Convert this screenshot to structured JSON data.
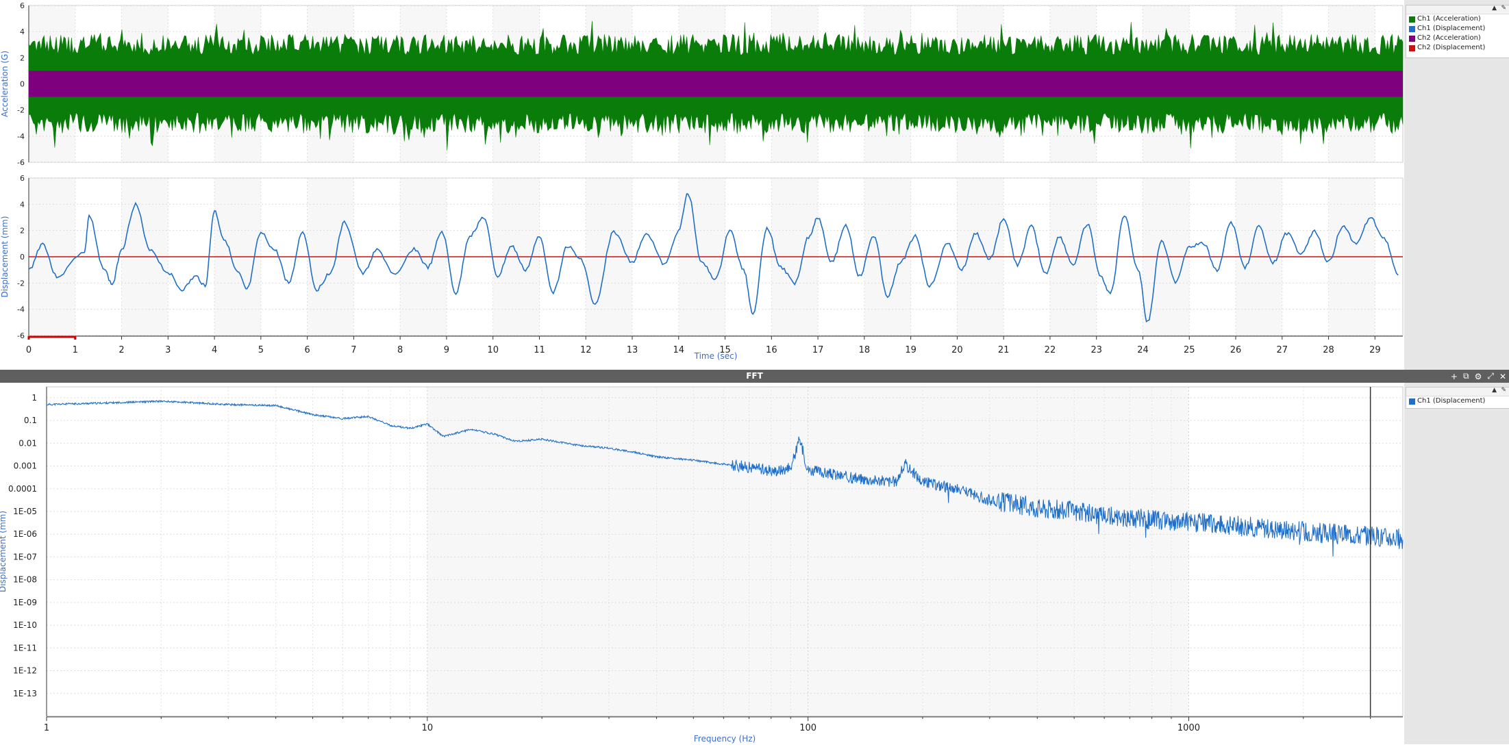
{
  "charts_top": {
    "acc_ylabel": "Acceleration (G)",
    "disp_ylabel": "Displacement (mm)",
    "xlabel": "Time (sec)"
  },
  "legend_top": {
    "items": [
      {
        "label": "Ch1 (Acceleration)",
        "color": "#0a7c0a"
      },
      {
        "label": "Ch1 (Displacement)",
        "color": "#1f6fc9"
      },
      {
        "label": "Ch2 (Acceleration)",
        "color": "#7f007f"
      },
      {
        "label": "Ch2 (Displacement)",
        "color": "#cc1111"
      }
    ]
  },
  "fft_header": {
    "title": "FFT"
  },
  "legend_fft": {
    "items": [
      {
        "label": "Ch1 (Displacement)",
        "color": "#1f6fc9"
      }
    ]
  },
  "chart_data": [
    {
      "type": "area",
      "title": "",
      "ylabel": "Acceleration (G)",
      "xlabel": "",
      "xlim": [
        0,
        29.6
      ],
      "ylim": [
        -6,
        6
      ],
      "yticks": [
        "6",
        "4",
        "2",
        "0",
        "-2",
        "-4",
        "-6"
      ],
      "series": [
        {
          "name": "Ch1 (Acceleration)",
          "color": "#0a7c0a",
          "band": [
            -4.2,
            4.2
          ]
        },
        {
          "name": "Ch2 (Acceleration)",
          "color": "#7f007f",
          "band": [
            -1.0,
            1.0
          ]
        }
      ]
    },
    {
      "type": "line",
      "title": "",
      "ylabel": "Displacement (mm)",
      "xlabel": "Time (sec)",
      "xlim": [
        0,
        29.6
      ],
      "ylim": [
        -6,
        6
      ],
      "yticks": [
        "6",
        "4",
        "2",
        "0",
        "-2",
        "-4",
        "-6"
      ],
      "xticks": [
        "0",
        "1",
        "2",
        "3",
        "4",
        "5",
        "6",
        "7",
        "8",
        "9",
        "10",
        "11",
        "12",
        "13",
        "14",
        "15",
        "16",
        "17",
        "18",
        "19",
        "20",
        "21",
        "22",
        "23",
        "24",
        "25",
        "26",
        "27",
        "28",
        "29"
      ],
      "series": [
        {
          "name": "Ch1 (Displacement)",
          "color": "#1f6fc9",
          "x": [
            0,
            0.3,
            0.6,
            1.2,
            1.3,
            1.6,
            1.8,
            2.0,
            2.3,
            2.6,
            3.0,
            3.3,
            3.6,
            3.8,
            4.0,
            4.2,
            4.5,
            4.7,
            5.0,
            5.3,
            5.6,
            5.9,
            6.2,
            6.5,
            6.8,
            7.2,
            7.5,
            7.9,
            8.3,
            8.6,
            8.9,
            9.2,
            9.5,
            9.8,
            10.1,
            10.4,
            10.7,
            11.0,
            11.3,
            11.6,
            11.9,
            12.2,
            12.6,
            13.0,
            13.3,
            13.7,
            14.0,
            14.2,
            14.5,
            14.8,
            15.1,
            15.4,
            15.6,
            15.9,
            16.2,
            16.5,
            16.8,
            17.0,
            17.3,
            17.6,
            17.9,
            18.2,
            18.5,
            18.8,
            19.1,
            19.4,
            19.8,
            20.1,
            20.4,
            20.7,
            21.0,
            21.3,
            21.6,
            21.9,
            22.2,
            22.5,
            22.8,
            23.1,
            23.3,
            23.6,
            23.9,
            24.1,
            24.4,
            24.7,
            25.0,
            25.3,
            25.6,
            25.9,
            26.2,
            26.5,
            26.8,
            27.1,
            27.4,
            27.7,
            28.0,
            28.3,
            28.6,
            28.9,
            29.2,
            29.5
          ],
          "y": [
            -1.0,
            1.0,
            -1.5,
            0.4,
            3.1,
            -0.8,
            -2.1,
            0.6,
            4.0,
            0.6,
            -1.2,
            -2.5,
            -1.5,
            -2.2,
            3.5,
            1.4,
            -1.2,
            -2.5,
            1.8,
            0.5,
            -2.0,
            1.9,
            -2.5,
            -1.2,
            2.6,
            -1.3,
            0.5,
            -1.4,
            0.6,
            -0.8,
            1.9,
            -2.8,
            1.6,
            3.0,
            -1.5,
            0.8,
            -1.0,
            1.5,
            -2.7,
            0.8,
            -0.2,
            -3.7,
            1.9,
            -0.4,
            1.8,
            -0.6,
            2.0,
            4.8,
            -0.5,
            -1.7,
            2.0,
            -1.0,
            -4.3,
            2.2,
            -0.8,
            -2.0,
            1.5,
            3.0,
            -0.4,
            2.4,
            -1.5,
            1.6,
            -3.0,
            -0.3,
            1.6,
            -2.2,
            1.0,
            -1.0,
            1.8,
            -0.2,
            2.9,
            -0.6,
            2.3,
            -1.3,
            1.5,
            -0.6,
            2.5,
            -1.6,
            -2.8,
            3.2,
            -1.0,
            -5.0,
            1.3,
            -1.9,
            0.8,
            1.0,
            -1.0,
            2.6,
            -0.8,
            2.3,
            -0.5,
            1.8,
            0.3,
            1.9,
            -0.4,
            2.3,
            1.0,
            3.0,
            1.4,
            -1.4
          ]
        },
        {
          "name": "Ch2 (Displacement)",
          "color": "#cc1111",
          "x": [
            0,
            29.6
          ],
          "y": [
            0,
            0
          ]
        }
      ]
    },
    {
      "type": "line",
      "title": "FFT",
      "xlabel": "Frequency (Hz)",
      "ylabel": "Displacement (mm)",
      "xscale": "log",
      "yscale": "log",
      "xlim": [
        1,
        3650
      ],
      "ylim": [
        1e-14,
        3
      ],
      "xticks": [
        "1",
        "10",
        "100",
        "1000"
      ],
      "yticks": [
        "1",
        "0.1",
        "0.01",
        "0.001",
        "0.0001",
        "1E-05",
        "1E-06",
        "1E-07",
        "1E-08",
        "1E-09",
        "1E-10",
        "1E-11",
        "1E-12",
        "1E-13"
      ],
      "cursor_x": 3000,
      "series": [
        {
          "name": "Ch1 (Displacement)",
          "color": "#1f6fc9",
          "x": [
            1,
            1.5,
            2,
            3,
            4,
            5,
            6,
            7,
            8,
            9,
            10,
            11,
            13,
            15,
            17,
            20,
            25,
            30,
            35,
            40,
            50,
            60,
            70,
            80,
            90,
            95,
            100,
            130,
            170,
            180,
            200,
            250,
            300,
            400,
            500,
            700,
            1000,
            1500,
            2000,
            3000,
            3650
          ],
          "y": [
            0.5,
            0.6,
            0.7,
            0.5,
            0.45,
            0.18,
            0.12,
            0.15,
            0.06,
            0.045,
            0.07,
            0.02,
            0.04,
            0.025,
            0.012,
            0.015,
            0.008,
            0.006,
            0.004,
            0.0025,
            0.0018,
            0.0012,
            0.0009,
            0.0006,
            0.0008,
            0.015,
            0.0007,
            0.0003,
            0.0002,
            0.0012,
            0.0002,
            9e-05,
            3e-05,
            1.5e-05,
            1e-05,
            5e-06,
            3.5e-06,
            2e-06,
            1.3e-06,
            8e-07,
            6e-07
          ]
        }
      ]
    }
  ]
}
